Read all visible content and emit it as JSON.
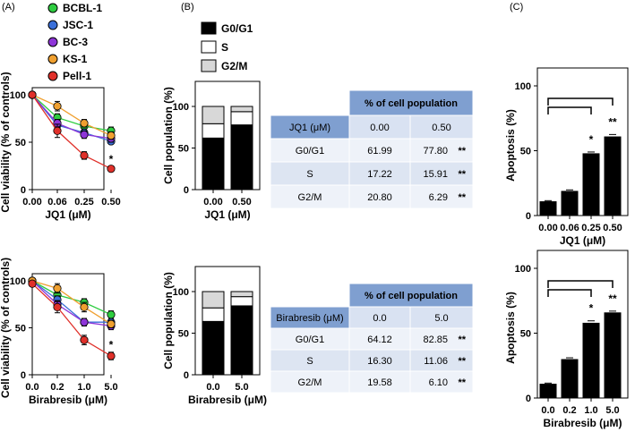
{
  "panel_labels": {
    "a": "(A)",
    "b": "(B)",
    "c": "(C)"
  },
  "legend_lines": [
    {
      "name": "BCBL-1",
      "color": "#2ecc40"
    },
    {
      "name": "JSC-1",
      "color": "#3a6fd8"
    },
    {
      "name": "BC-3",
      "color": "#8e35d8"
    },
    {
      "name": "KS-1",
      "color": "#f0a030"
    },
    {
      "name": "Pell-1",
      "color": "#e0302a"
    }
  ],
  "legend_bars": [
    {
      "name": "G0/G1",
      "color": "#000000"
    },
    {
      "name": "S",
      "color": "#ffffff"
    },
    {
      "name": "G2/M",
      "color": "#d8d8d8"
    }
  ],
  "chart_data": [
    {
      "id": "viability_jq1",
      "type": "line",
      "title": "",
      "xlabel": "JQ1 (μM)",
      "ylabel": "Cell viability (% of controls)",
      "categories": [
        "0.00",
        "0.06",
        "0.25",
        "0.50"
      ],
      "ylim": [
        0,
        100
      ],
      "yticks": [
        "0",
        "50",
        "100"
      ],
      "series": [
        {
          "name": "BCBL-1",
          "color": "#2ecc40",
          "values": [
            100,
            76,
            67,
            62
          ],
          "err": [
            0,
            4,
            4,
            4
          ]
        },
        {
          "name": "JSC-1",
          "color": "#3a6fd8",
          "values": [
            100,
            68,
            60,
            51
          ],
          "err": [
            0,
            4,
            4,
            3
          ]
        },
        {
          "name": "BC-3",
          "color": "#8e35d8",
          "values": [
            100,
            70,
            58,
            54
          ],
          "err": [
            0,
            4,
            4,
            4
          ]
        },
        {
          "name": "KS-1",
          "color": "#f0a030",
          "values": [
            100,
            88,
            70,
            57
          ],
          "err": [
            0,
            5,
            4,
            4
          ]
        },
        {
          "name": "Pell-1",
          "color": "#e0302a",
          "values": [
            100,
            62,
            36,
            22
          ],
          "err": [
            0,
            7,
            4,
            3
          ]
        }
      ],
      "annotations": [
        {
          "text": "*",
          "x": "0.50",
          "y": 32
        }
      ]
    },
    {
      "id": "viability_birabresib",
      "type": "line",
      "title": "",
      "xlabel": "Birabresib (μM)",
      "ylabel": "Cell viability (% of controls)",
      "categories": [
        "0.0",
        "0.2",
        "1.0",
        "5.0"
      ],
      "ylim": [
        0,
        100
      ],
      "yticks": [
        "0",
        "50",
        "100"
      ],
      "series": [
        {
          "name": "BCBL-1",
          "color": "#2ecc40",
          "values": [
            100,
            85,
            77,
            64
          ],
          "err": [
            0,
            4,
            4,
            4
          ]
        },
        {
          "name": "JSC-1",
          "color": "#3a6fd8",
          "values": [
            100,
            80,
            56,
            56
          ],
          "err": [
            0,
            4,
            4,
            4
          ]
        },
        {
          "name": "BC-3",
          "color": "#8e35d8",
          "values": [
            100,
            75,
            56,
            52
          ],
          "err": [
            0,
            4,
            4,
            4
          ]
        },
        {
          "name": "KS-1",
          "color": "#f0a030",
          "values": [
            100,
            92,
            72,
            54
          ],
          "err": [
            0,
            5,
            5,
            4
          ]
        },
        {
          "name": "Pell-1",
          "color": "#e0302a",
          "values": [
            97,
            72,
            37,
            20
          ],
          "err": [
            3,
            6,
            5,
            4
          ]
        }
      ],
      "annotations": [
        {
          "text": "*",
          "x": "5.0",
          "y": 32
        }
      ]
    },
    {
      "id": "cellcycle_jq1",
      "type": "bar",
      "stacked": true,
      "xlabel": "JQ1 (μM)",
      "ylabel": "Cell population (%)",
      "categories": [
        "0.00",
        "0.50"
      ],
      "ylim": [
        0,
        100
      ],
      "yticks": [
        "0",
        "50",
        "100"
      ],
      "series": [
        {
          "name": "G0/G1",
          "color": "#000000",
          "values": [
            61.99,
            77.8
          ]
        },
        {
          "name": "S",
          "color": "#ffffff",
          "values": [
            17.22,
            15.91
          ]
        },
        {
          "name": "G2/M",
          "color": "#d8d8d8",
          "values": [
            20.8,
            6.29
          ]
        }
      ]
    },
    {
      "id": "cellcycle_birabresib",
      "type": "bar",
      "stacked": true,
      "xlabel": "Birabresib (μM)",
      "ylabel": "Cell population (%)",
      "categories": [
        "0.0",
        "5.0"
      ],
      "ylim": [
        0,
        100
      ],
      "yticks": [
        "0",
        "50",
        "100"
      ],
      "series": [
        {
          "name": "G0/G1",
          "color": "#000000",
          "values": [
            64.12,
            82.85
          ]
        },
        {
          "name": "S",
          "color": "#ffffff",
          "values": [
            16.3,
            11.06
          ]
        },
        {
          "name": "G2/M",
          "color": "#d8d8d8",
          "values": [
            19.58,
            6.1
          ]
        }
      ]
    },
    {
      "id": "apoptosis_jq1",
      "type": "bar",
      "xlabel": "JQ1 (μM)",
      "ylabel": "Apoptosis (%)",
      "categories": [
        "0.00",
        "0.06",
        "0.25",
        "0.50"
      ],
      "values": [
        11,
        19,
        48,
        61
      ],
      "err": [
        0.5,
        0.8,
        1,
        1.5
      ],
      "ylim": [
        0,
        100
      ],
      "yticks": [
        "0",
        "50",
        "100"
      ],
      "significance": [
        {
          "to": "0.25",
          "label": "*"
        },
        {
          "to": "0.50",
          "label": "**"
        }
      ]
    },
    {
      "id": "apoptosis_birabresib",
      "type": "bar",
      "xlabel": "Birabresib (μM)",
      "ylabel": "Apoptosis (%)",
      "categories": [
        "0.0",
        "0.2",
        "1.0",
        "5.0"
      ],
      "values": [
        11,
        30,
        58,
        66
      ],
      "err": [
        0.5,
        1,
        1.5,
        1
      ],
      "ylim": [
        0,
        100
      ],
      "yticks": [
        "0",
        "50",
        "100"
      ],
      "significance": [
        {
          "to": "1.0",
          "label": "*"
        },
        {
          "to": "5.0",
          "label": "**"
        }
      ]
    }
  ],
  "tables": [
    {
      "header": "% of cell population",
      "col_label": "JQ1 (μM)",
      "cols": [
        "0.00",
        "0.50"
      ],
      "rows": [
        {
          "phase": "G0/G1",
          "v1": "61.99",
          "v2": "77.80",
          "sig": "**"
        },
        {
          "phase": "S",
          "v1": "17.22",
          "v2": "15.91",
          "sig": "**"
        },
        {
          "phase": "G2/M",
          "v1": "20.80",
          "v2": "6.29",
          "sig": "**"
        }
      ]
    },
    {
      "header": "% of cell population",
      "col_label": "Birabresib (μM)",
      "cols": [
        "0.0",
        "5.0"
      ],
      "rows": [
        {
          "phase": "G0/G1",
          "v1": "64.12",
          "v2": "82.85",
          "sig": "**"
        },
        {
          "phase": "S",
          "v1": "16.30",
          "v2": "11.06",
          "sig": "**"
        },
        {
          "phase": "G2/M",
          "v1": "19.58",
          "v2": "6.10",
          "sig": "**"
        }
      ]
    }
  ]
}
